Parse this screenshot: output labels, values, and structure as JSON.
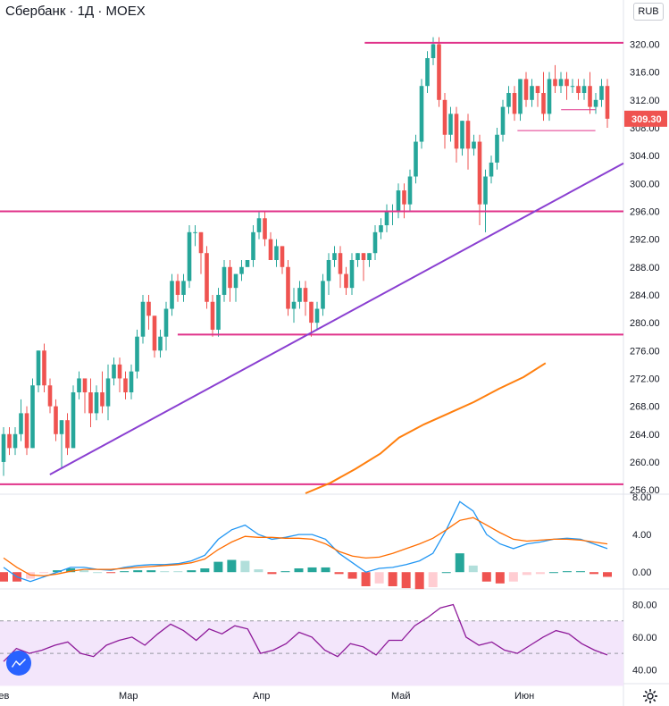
{
  "header": {
    "title": "Сбербанк · 1Д · MOEX",
    "currency": "RUB"
  },
  "colors": {
    "up": "#26a69a",
    "down": "#ef5350",
    "level": "#e0338a",
    "trend": "#8a3fd1",
    "ma": "#ff7f0e",
    "macd_line": "#2196f3",
    "signal_line": "#ff6d00",
    "rsi": "#8e1a9a",
    "rsi_band": "#f3e6fb",
    "price_badge": "#ef5350"
  },
  "icons": {
    "settings": "gear-icon",
    "logo": "tradingview-logo-icon"
  },
  "chart_data": [
    {
      "type": "candlestick",
      "title": "Сбербанк",
      "ylim": [
        255.5,
        322.5
      ],
      "y_ticks": [
        "320.00",
        "316.00",
        "312.00",
        "308.00",
        "304.00",
        "300.00",
        "296.00",
        "292.00",
        "288.00",
        "284.00",
        "280.00",
        "276.00",
        "272.00",
        "268.00",
        "264.00",
        "260.00",
        "256.00"
      ],
      "last_price": "309.30",
      "x_labels": [
        "Фев",
        "Мар",
        "Апр",
        "Май",
        "Июн"
      ],
      "candles": [
        [
          260,
          264,
          258,
          265
        ],
        [
          264,
          262,
          261,
          265
        ],
        [
          262,
          264,
          261,
          265
        ],
        [
          264,
          267,
          263,
          269
        ],
        [
          267,
          262,
          261,
          268
        ],
        [
          262,
          271,
          262,
          272
        ],
        [
          271,
          276,
          270,
          276
        ],
        [
          276,
          271,
          270,
          277
        ],
        [
          271,
          268,
          267,
          272
        ],
        [
          268,
          264,
          263,
          269
        ],
        [
          264,
          266,
          259,
          266
        ],
        [
          266,
          262,
          261,
          267
        ],
        [
          262,
          270,
          262,
          271
        ],
        [
          270,
          272,
          269,
          273
        ],
        [
          272,
          270,
          267,
          272
        ],
        [
          270,
          267,
          265,
          272
        ],
        [
          267,
          270,
          266,
          271
        ],
        [
          270,
          268,
          267,
          273
        ],
        [
          268,
          272,
          266,
          274
        ],
        [
          272,
          274,
          271,
          275
        ],
        [
          274,
          272,
          270,
          275
        ],
        [
          272,
          270,
          269,
          273
        ],
        [
          270,
          273,
          269,
          274
        ],
        [
          273,
          278,
          272,
          279
        ],
        [
          278,
          283,
          277,
          284
        ],
        [
          283,
          281,
          279,
          284
        ],
        [
          281,
          276,
          275,
          281
        ],
        [
          276,
          278,
          275,
          279
        ],
        [
          278,
          282,
          276,
          283
        ],
        [
          282,
          286,
          281,
          287
        ],
        [
          286,
          284,
          283,
          287
        ],
        [
          284,
          286,
          283,
          287
        ],
        [
          286,
          293,
          285,
          294
        ],
        [
          293,
          293,
          291,
          294
        ],
        [
          293,
          290,
          287,
          293
        ],
        [
          290,
          283,
          282,
          291
        ],
        [
          283,
          279,
          278,
          284
        ],
        [
          279,
          284,
          278,
          285
        ],
        [
          284,
          288,
          283,
          289
        ],
        [
          288,
          285,
          283,
          289
        ],
        [
          285,
          287,
          283,
          287
        ],
        [
          287,
          288,
          286,
          289
        ],
        [
          288,
          289,
          288,
          289
        ],
        [
          289,
          293,
          288,
          294
        ],
        [
          293,
          295,
          292,
          296
        ],
        [
          295,
          292,
          291,
          296
        ],
        [
          292,
          289,
          289,
          293
        ],
        [
          289,
          291,
          288,
          292
        ],
        [
          291,
          288,
          287,
          291
        ],
        [
          288,
          282,
          281,
          289
        ],
        [
          282,
          283,
          280,
          285
        ],
        [
          283,
          285,
          282,
          286
        ],
        [
          285,
          283,
          281,
          286
        ],
        [
          283,
          280,
          278,
          283
        ],
        [
          280,
          282,
          279,
          283
        ],
        [
          282,
          286,
          281,
          287
        ],
        [
          286,
          289,
          284,
          290
        ],
        [
          289,
          290,
          288,
          291
        ],
        [
          290,
          287,
          285,
          291
        ],
        [
          287,
          285,
          284,
          288
        ],
        [
          285,
          289,
          284,
          290
        ],
        [
          289,
          290,
          288,
          290
        ],
        [
          290,
          289,
          286,
          290
        ],
        [
          289,
          290,
          288,
          290
        ],
        [
          290,
          293,
          289,
          294
        ],
        [
          293,
          294,
          292,
          295
        ],
        [
          294,
          296,
          293,
          297
        ],
        [
          296,
          296,
          294,
          297
        ],
        [
          296,
          299,
          295,
          300
        ],
        [
          299,
          297,
          295,
          300
        ],
        [
          297,
          301,
          296,
          302
        ],
        [
          301,
          306,
          300,
          307
        ],
        [
          306,
          314,
          305,
          315
        ],
        [
          314,
          318,
          313,
          319
        ],
        [
          318,
          320,
          317,
          321
        ],
        [
          320,
          312,
          311,
          321
        ],
        [
          312,
          307,
          305,
          313
        ],
        [
          307,
          310,
          306,
          311
        ],
        [
          310,
          305,
          303,
          311
        ],
        [
          305,
          309,
          304,
          309
        ],
        [
          309,
          305,
          302,
          310
        ],
        [
          305,
          306,
          304,
          307
        ],
        [
          306,
          297,
          294,
          307
        ],
        [
          297,
          301,
          293,
          302
        ],
        [
          301,
          303,
          300,
          304
        ],
        [
          303,
          307,
          302,
          308
        ],
        [
          307,
          311,
          306,
          312
        ],
        [
          311,
          313,
          310,
          314
        ],
        [
          313,
          310,
          309,
          314
        ],
        [
          310,
          315,
          309,
          315
        ],
        [
          315,
          312,
          311,
          316
        ],
        [
          312,
          314,
          311,
          315
        ],
        [
          314,
          313,
          311,
          314
        ],
        [
          313,
          310,
          309,
          316
        ],
        [
          310,
          315,
          309,
          316
        ],
        [
          315,
          314,
          313,
          317
        ],
        [
          314,
          315,
          313,
          316
        ],
        [
          315,
          314,
          312,
          316
        ],
        [
          314,
          314,
          313,
          315
        ],
        [
          314,
          313,
          312,
          315
        ],
        [
          313,
          314,
          312,
          315
        ],
        [
          314,
          311,
          310,
          316
        ],
        [
          311,
          312,
          310,
          313
        ],
        [
          312,
          314,
          311,
          315
        ],
        [
          314,
          309.3,
          308,
          315
        ]
      ],
      "levels": [
        {
          "price": 320.2,
          "from": 0.585,
          "to": 1.0
        },
        {
          "price": 296.0,
          "from": 0.0,
          "to": 1.0
        },
        {
          "price": 278.3,
          "from": 0.285,
          "to": 1.0
        },
        {
          "price": 256.8,
          "from": 0.0,
          "to": 1.0
        },
        {
          "price": 310.6,
          "from": 0.9,
          "to": 0.955
        },
        {
          "price": 307.6,
          "from": 0.83,
          "to": 0.955
        }
      ],
      "trend_line": {
        "from": [
          0.08,
          258.2
        ],
        "to": [
          1.0,
          302.9
        ]
      },
      "moving_average": [
        [
          0.49,
          255.5
        ],
        [
          0.53,
          257
        ],
        [
          0.57,
          259
        ],
        [
          0.61,
          261.2
        ],
        [
          0.64,
          263.5
        ],
        [
          0.68,
          265.4
        ],
        [
          0.72,
          267
        ],
        [
          0.76,
          268.6
        ],
        [
          0.8,
          270.5
        ],
        [
          0.84,
          272.2
        ],
        [
          0.875,
          274.2
        ]
      ]
    },
    {
      "type": "macd",
      "ylim": [
        -1.5,
        8.0
      ],
      "y_ticks": [
        "8.00",
        "4.00",
        "0.00"
      ],
      "macd": [
        0.5,
        -0.5,
        -1.0,
        -0.5,
        0.0,
        0.5,
        0.5,
        0.3,
        0.2,
        0.5,
        0.7,
        0.8,
        0.8,
        0.9,
        1.2,
        1.8,
        3.5,
        4.5,
        5.0,
        4.0,
        3.5,
        3.7,
        4.0,
        4.0,
        3.5,
        2.0,
        1.0,
        0.0,
        0.4,
        0.5,
        0.8,
        1.2,
        2.0,
        4.5,
        7.5,
        6.5,
        4.0,
        3.0,
        2.5,
        3.0,
        3.2,
        3.5,
        3.6,
        3.5,
        3.0,
        2.5
      ],
      "signal": [
        1.5,
        0.5,
        -0.3,
        -0.4,
        -0.2,
        0.1,
        0.3,
        0.3,
        0.3,
        0.4,
        0.5,
        0.6,
        0.7,
        0.8,
        1.0,
        1.4,
        2.4,
        3.2,
        3.8,
        3.7,
        3.7,
        3.6,
        3.6,
        3.5,
        3.0,
        2.2,
        1.7,
        1.5,
        1.6,
        2.0,
        2.5,
        3.0,
        3.6,
        4.5,
        5.5,
        5.8,
        5.0,
        4.2,
        3.5,
        3.3,
        3.4,
        3.5,
        3.5,
        3.4,
        3.2,
        3.0
      ]
    },
    {
      "type": "rsi",
      "ylim": [
        33,
        88
      ],
      "y_ticks": [
        "80.00",
        "60.00",
        "40.00"
      ],
      "band": [
        30,
        70
      ],
      "values": [
        45,
        53,
        50,
        52,
        55,
        57,
        50,
        48,
        55,
        58,
        60,
        55,
        62,
        68,
        64,
        58,
        65,
        62,
        67,
        65,
        50,
        52,
        56,
        63,
        60,
        52,
        48,
        56,
        54,
        49,
        58,
        58,
        67,
        72,
        78,
        80,
        60,
        55,
        57,
        52,
        50,
        55,
        60,
        64,
        62,
        56,
        52,
        49
      ]
    }
  ]
}
